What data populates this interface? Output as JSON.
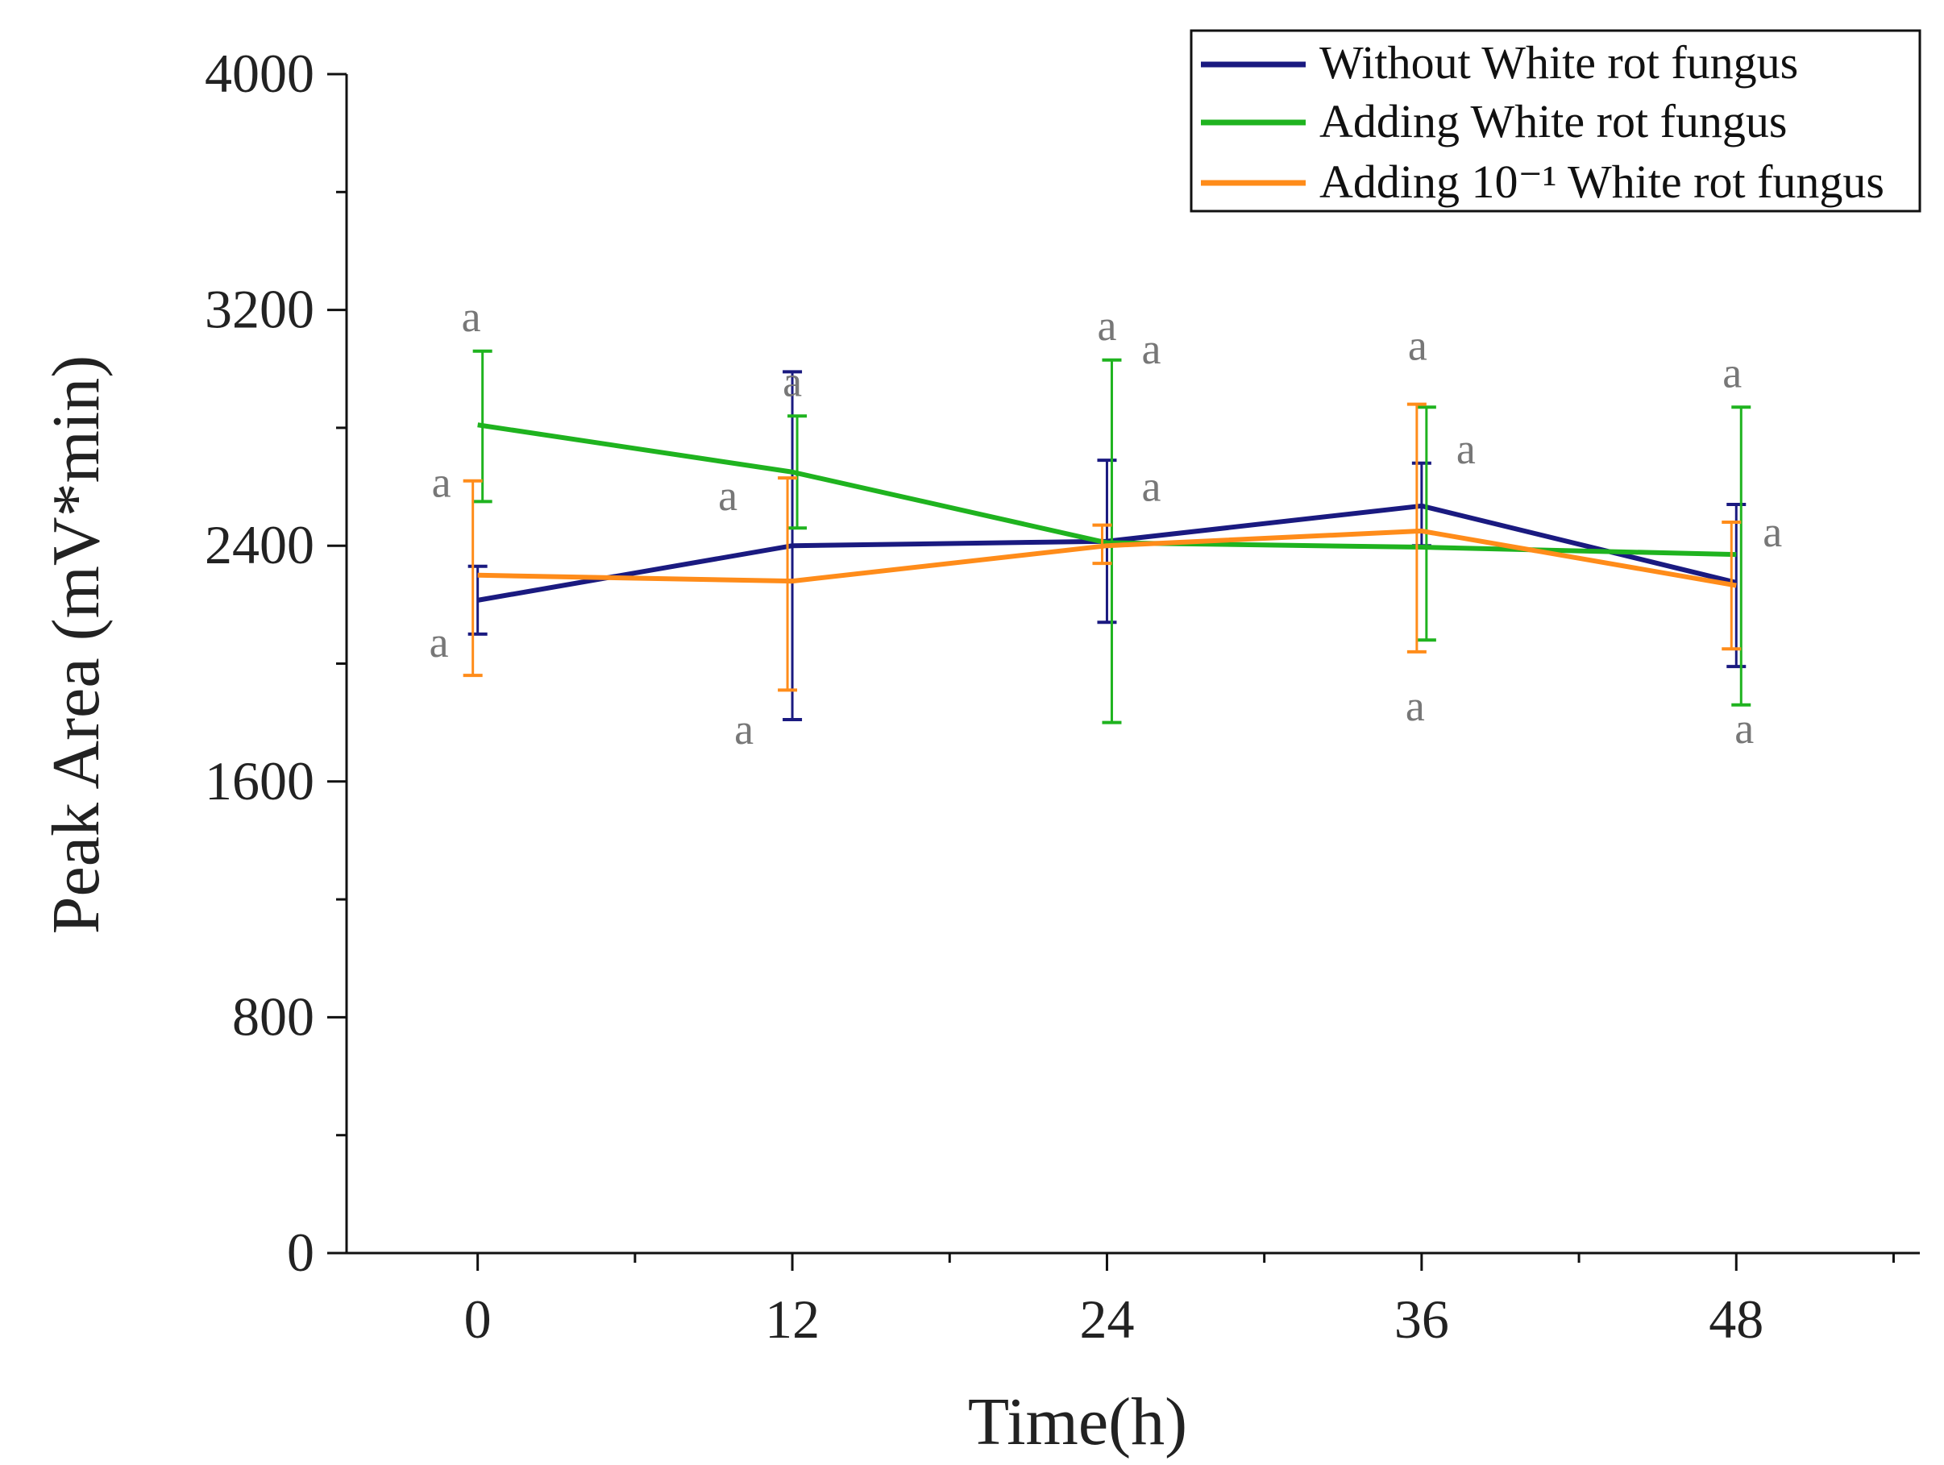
{
  "chart_data": {
    "type": "line",
    "xlabel": "Time(h)",
    "ylabel": "Peak Area (mV*min)",
    "x": [
      0,
      12,
      24,
      36,
      48
    ],
    "xticks": [
      "0",
      "12",
      "24",
      "36",
      "48"
    ],
    "yticks": [
      "0",
      "800",
      "1600",
      "2400",
      "3200",
      "4000"
    ],
    "xlim": [
      -5,
      55
    ],
    "ylim": [
      0,
      4000
    ],
    "grid": false,
    "legend_position": "top-right",
    "series": [
      {
        "name": "Without White rot fungus",
        "color": "#1a1a80",
        "values": [
          2215,
          2400,
          2415,
          2535,
          2275
        ],
        "err_low": [
          2100,
          1810,
          2140,
          2400,
          1990
        ],
        "err_high": [
          2330,
          2990,
          2690,
          2680,
          2540
        ],
        "sig": [
          "a",
          "a",
          "a",
          "a",
          "a"
        ]
      },
      {
        "name": "Adding White rot fungus",
        "color": "#1fb31f",
        "values": [
          2810,
          2650,
          2410,
          2395,
          2370
        ],
        "err_low": [
          2550,
          2460,
          1800,
          2080,
          1860
        ],
        "err_high": [
          3060,
          2840,
          3030,
          2870,
          2870
        ],
        "sig": [
          "a",
          "a",
          "a",
          "a",
          "a"
        ]
      },
      {
        "name": "Adding 10⁻¹ White rot fungus",
        "color": "#ff8c1a",
        "values": [
          2300,
          2280,
          2400,
          2450,
          2265
        ],
        "err_low": [
          1960,
          1910,
          2340,
          2040,
          2050
        ],
        "err_high": [
          2620,
          2630,
          2470,
          2880,
          2480
        ],
        "sig": [
          "a",
          "a",
          "a",
          "a",
          "a"
        ]
      }
    ]
  }
}
